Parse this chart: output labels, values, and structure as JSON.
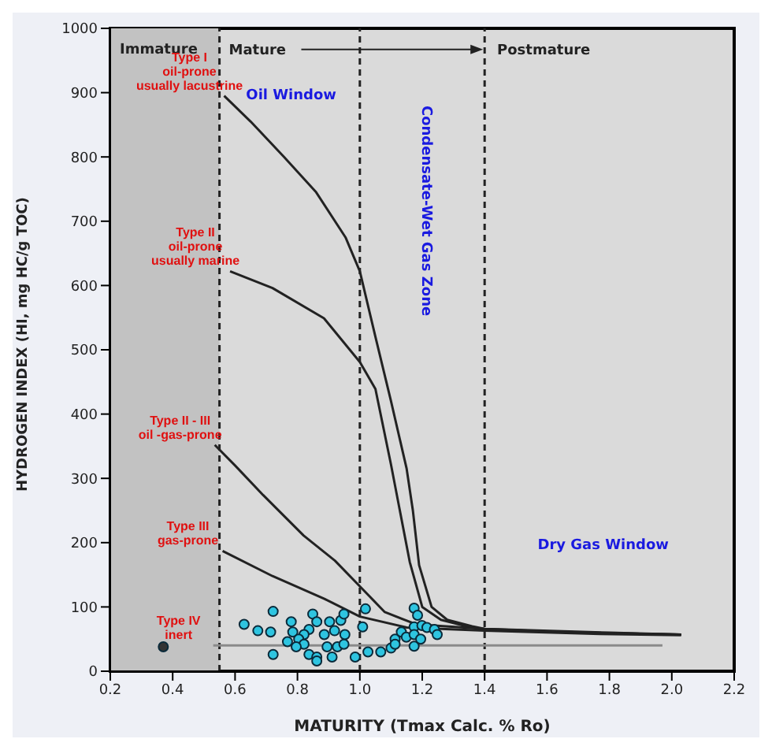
{
  "chart_data": {
    "type": "line",
    "xlabel": "MATURITY (Tmax Calc. % Ro)",
    "ylabel": "HYDROGEN INDEX (HI, mg HC/g TOC)",
    "xlim": [
      0.2,
      2.2
    ],
    "xticks": [
      0.2,
      0.4,
      0.6,
      0.8,
      {
        "value": 1,
        "label": "1.0"
      },
      1.2,
      1.4,
      1.6,
      1.8,
      {
        "value": 2,
        "label": "2.0"
      },
      2.2
    ],
    "ylim": [
      0,
      1000
    ],
    "yticks": [
      0,
      100,
      200,
      300,
      400,
      500,
      600,
      700,
      800,
      900,
      1000
    ],
    "grid": false,
    "marker": "none",
    "line_style": "solid",
    "series": [
      {
        "name": "Type I\noil-prone\nusually lacustrine",
        "color": "#222222",
        "x": [
          0.565,
          0.65,
          0.757,
          0.86,
          0.954,
          1.0,
          1.05,
          1.1,
          1.15,
          1.17,
          1.19,
          1.23,
          1.28,
          1.36,
          1.4,
          1.6,
          1.8,
          2.03
        ],
        "values": [
          895,
          855,
          800,
          745,
          675,
          622,
          520,
          420,
          315,
          250,
          165,
          100,
          80,
          70,
          66,
          62,
          59,
          57
        ]
      },
      {
        "name": "Type II\noil-prone\nusually marine",
        "color": "#222222",
        "x": [
          0.584,
          0.72,
          0.885,
          1.0,
          1.05,
          1.1,
          1.16,
          1.2,
          1.26,
          1.34,
          1.4,
          1.6,
          1.8,
          2.03
        ],
        "values": [
          622,
          596,
          549,
          481,
          439,
          321,
          170,
          100,
          80,
          70,
          65,
          62,
          59,
          57
        ]
      },
      {
        "name": "Type II - III\noil -gas-prone",
        "color": "#222222",
        "x": [
          0.535,
          0.6,
          0.69,
          0.82,
          0.92,
          1.0,
          1.08,
          1.18,
          1.4,
          1.8,
          2.03
        ],
        "values": [
          352,
          320,
          274,
          211,
          172,
          132,
          92,
          73,
          66,
          60,
          57
        ]
      },
      {
        "name": "Type III\ngas-prone",
        "color": "#222222",
        "x": [
          0.56,
          0.72,
          0.885,
          1.0,
          1.15,
          1.4,
          1.77,
          2.03
        ],
        "values": [
          187,
          148,
          113,
          85,
          68,
          63,
          58,
          56
        ]
      },
      {
        "name": "Type IV\ninert",
        "color": "#8a8a8a",
        "x": [
          0.53,
          1.97
        ],
        "values": [
          40,
          40
        ]
      },
      {
        "type": "scatter",
        "marker": "circle",
        "color": "#2ec4e0",
        "x": [
          0.629,
          0.722,
          0.673,
          0.714,
          0.78,
          0.849,
          0.862,
          0.903,
          0.939,
          0.949,
          1.018,
          1.009,
          0.837,
          0.821,
          0.785,
          0.768,
          0.804,
          0.821,
          0.796,
          0.886,
          0.919,
          0.952,
          0.895,
          0.928,
          0.949,
          0.722,
          0.837,
          0.862,
          0.862,
          0.911,
          0.985,
          1.026,
          1.067,
          1.1,
          1.113,
          1.113,
          1.133,
          1.149,
          1.174,
          1.174,
          1.185,
          1.174,
          1.174,
          1.199,
          1.215,
          1.195,
          1.239,
          1.248
        ],
        "values": [
          73,
          93,
          63,
          61,
          77,
          89,
          77,
          77,
          79,
          89,
          97,
          69,
          65,
          57,
          61,
          46,
          50,
          42,
          38,
          57,
          63,
          57,
          38,
          38,
          42,
          26,
          26,
          22,
          16,
          22,
          22,
          30,
          30,
          36,
          50,
          42,
          61,
          53,
          69,
          98,
          87,
          57,
          39,
          71,
          68,
          50,
          65,
          57
        ]
      },
      {
        "type": "scatter",
        "marker": "circle",
        "color": "#333333",
        "x": [
          0.37
        ],
        "values": [
          38
        ]
      }
    ],
    "ref_lines": [
      {
        "axis": "x",
        "value": 0.55,
        "line_style": "dashed",
        "color": "#222222"
      },
      {
        "axis": "x",
        "value": 1.0,
        "line_style": "dashed",
        "color": "#222222"
      },
      {
        "axis": "x",
        "value": 1.4,
        "line_style": "dashed",
        "color": "#222222"
      }
    ],
    "bands": [
      {
        "axis": "x",
        "from": 0.2,
        "to": 0.55,
        "label": "Immature",
        "color": "#c2c2c2"
      }
    ],
    "annotations": [
      "Mature",
      "Postmature",
      "Oil Window",
      "Condensate-Wet Gas Zone",
      "Dry Gas Window"
    ]
  }
}
